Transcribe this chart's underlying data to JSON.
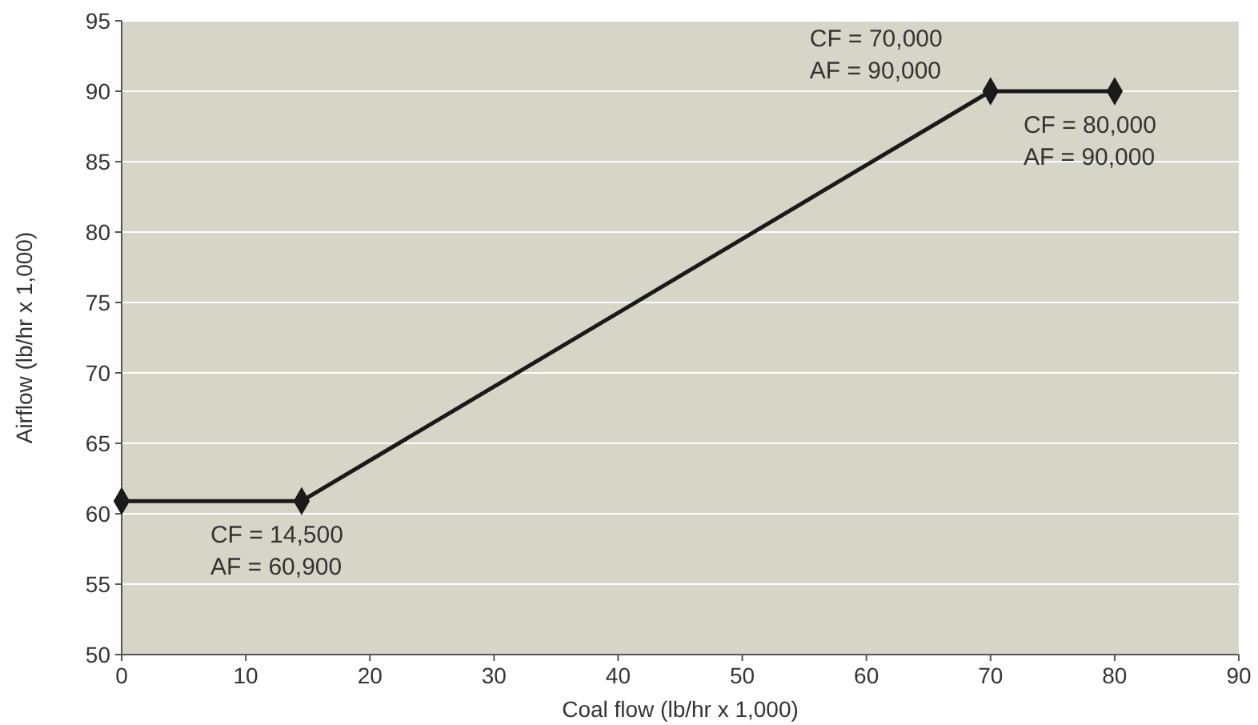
{
  "chart_data": {
    "type": "line",
    "xlabel": "Coal flow (lb/hr x 1,000)",
    "ylabel": "Airflow (lb/hr x 1,000)",
    "x": [
      0,
      14.5,
      70,
      80
    ],
    "series": [
      {
        "color": "#1a1a1a",
        "values": [
          60.9,
          60.9,
          90,
          90
        ]
      }
    ],
    "xlim": [
      0,
      90
    ],
    "xticks": [
      0,
      10,
      20,
      30,
      40,
      50,
      60,
      70,
      80,
      90
    ],
    "ylim": [
      50,
      95
    ],
    "yticks": [
      50,
      55,
      60,
      65,
      70,
      75,
      80,
      85,
      90,
      95
    ],
    "grid": "y",
    "marker": "diamond",
    "line_style": "solid",
    "annotations": [
      {
        "text": "CF = 14,500\nAF = 60,900",
        "x": 14.5,
        "y": 60.9
      },
      {
        "text": "CF = 70,000\nAF = 90,000",
        "x": 70,
        "y": 90
      },
      {
        "text": "CF = 80,000\nAF = 90,000",
        "x": 80,
        "y": 90
      }
    ]
  }
}
